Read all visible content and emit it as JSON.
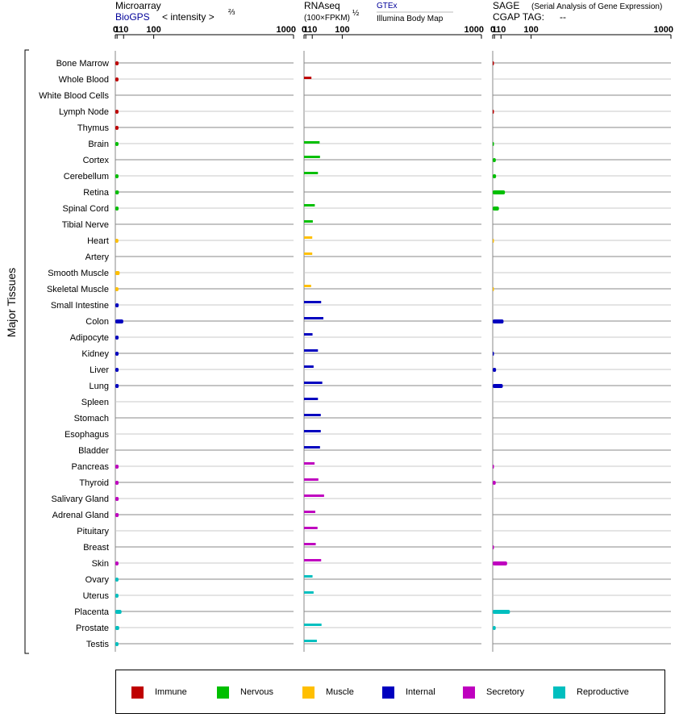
{
  "header": {
    "microarray_title": "Microarray",
    "biogps_link": "BioGPS",
    "intensity_label": "< intensity >",
    "intensity_exp": "⅔",
    "rnaseq_title": "RNAseq",
    "rnaseq_units": "(100×FPKM)",
    "rnaseq_exp": "½",
    "gtex_link": "GTEx",
    "illumina_label": "Illumina Body Map",
    "sage_title": "SAGE",
    "sage_subtitle": "(Serial Analysis of Gene Expression)",
    "cgap_label": "CGAP TAG:",
    "cgap_value": "--"
  },
  "y_axis_label": "Major Tissues",
  "chart_data": {
    "type": "bar",
    "axis_ticks": [
      "0",
      "1",
      "10",
      "100",
      "1000"
    ],
    "tissues": [
      "Bone Marrow",
      "Whole Blood",
      "White Blood Cells",
      "Lymph Node",
      "Thymus",
      "Brain",
      "Cortex",
      "Cerebellum",
      "Retina",
      "Spinal Cord",
      "Tibial Nerve",
      "Heart",
      "Artery",
      "Smooth Muscle",
      "Skeletal Muscle",
      "Small Intestine",
      "Colon",
      "Adipocyte",
      "Kidney",
      "Liver",
      "Lung",
      "Spleen",
      "Stomach",
      "Esophagus",
      "Bladder",
      "Pancreas",
      "Thyroid",
      "Salivary Gland",
      "Adrenal Gland",
      "Pituitary",
      "Breast",
      "Skin",
      "Ovary",
      "Uterus",
      "Placenta",
      "Prostate",
      "Testis"
    ],
    "groups": [
      "Immune",
      "Immune",
      "Immune",
      "Immune",
      "Immune",
      "Nervous",
      "Nervous",
      "Nervous",
      "Nervous",
      "Nervous",
      "Nervous",
      "Muscle",
      "Muscle",
      "Muscle",
      "Muscle",
      "Internal",
      "Internal",
      "Internal",
      "Internal",
      "Internal",
      "Internal",
      "Internal",
      "Internal",
      "Internal",
      "Internal",
      "Secretory",
      "Secretory",
      "Secretory",
      "Secretory",
      "Secretory",
      "Secretory",
      "Secretory",
      "Reproductive",
      "Reproductive",
      "Reproductive",
      "Reproductive",
      "Reproductive"
    ],
    "series": [
      {
        "name": "Microarray",
        "values": [
          2.5,
          2.4,
          null,
          2.4,
          2.4,
          2.4,
          null,
          2.4,
          2.8,
          2.5,
          null,
          2.3,
          null,
          3.8,
          2.4,
          2.6,
          9.5,
          2.5,
          2.5,
          2.5,
          2.6,
          null,
          null,
          null,
          null,
          2.5,
          2.5,
          2.6,
          2.6,
          null,
          null,
          2.4,
          2.4,
          2.4,
          6.5,
          3.2,
          2.4
        ]
      },
      {
        "name": "RNAseq",
        "values": [
          null,
          8.5,
          null,
          null,
          null,
          26,
          null,
          null,
          null,
          null,
          null,
          null,
          null,
          null,
          null,
          null,
          null,
          null,
          null,
          null,
          null,
          null,
          null,
          null,
          null,
          null,
          null,
          null,
          null,
          null,
          null,
          null,
          null,
          null,
          null,
          null,
          null
        ],
        "values_upper": [
          null,
          null,
          null,
          null,
          null,
          26,
          27,
          22,
          null,
          15,
          11,
          10,
          10,
          null,
          8,
          30,
          36,
          10.5,
          22,
          12.5,
          33,
          22,
          29,
          29,
          27,
          14.5,
          23,
          38,
          16,
          21,
          17,
          30,
          10.5,
          12.5,
          null,
          31,
          19.5
        ]
      },
      {
        "name": "SAGE",
        "values": [
          0.05,
          null,
          null,
          0.05,
          null,
          0.05,
          2.3,
          2.6,
          18,
          6.5,
          null,
          0.03,
          null,
          null,
          0.03,
          null,
          15,
          null,
          0.05,
          2.6,
          13.5,
          null,
          null,
          null,
          null,
          0.05,
          2.2,
          null,
          null,
          null,
          0.05,
          23,
          null,
          null,
          30,
          2.2,
          null
        ]
      }
    ],
    "legend": [
      {
        "name": "Immune",
        "color": "#bf0000"
      },
      {
        "name": "Nervous",
        "color": "#00bf00"
      },
      {
        "name": "Muscle",
        "color": "#ffbf00"
      },
      {
        "name": "Internal",
        "color": "#0000bf"
      },
      {
        "name": "Secretory",
        "color": "#bf00bf"
      },
      {
        "name": "Reproductive",
        "color": "#00bfbf"
      }
    ]
  }
}
